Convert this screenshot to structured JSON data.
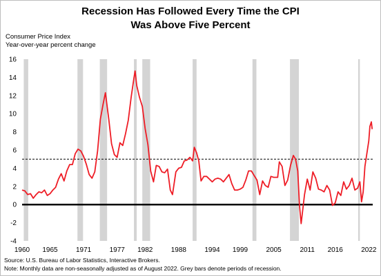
{
  "title_line1": "Recession Has Followed Every Time the CPI",
  "title_line2": "Was Above Five Percent",
  "ylabel_line1": "Consumer Price Index",
  "ylabel_line2": "Year-over-year percent change",
  "source": "Source: U.S. Bureau of Labor Statistics, Interactive Brokers.",
  "note": "Note: Monthly data are non-seasonally adjusted as of August 2022. Grey bars denote periods of recession.",
  "chart_data": {
    "type": "line",
    "xlim": [
      1960,
      2022.7
    ],
    "ylim": [
      -4,
      16
    ],
    "xticks": [
      "1960",
      "1965",
      "1971",
      "1977",
      "1982",
      "1988",
      "1994",
      "1999",
      "2005",
      "2011",
      "2016",
      "2022"
    ],
    "xtick_values": [
      1960,
      1965,
      1971,
      1977,
      1982,
      1988,
      1994,
      1999,
      2005,
      2011,
      2016,
      2022
    ],
    "yticks": [
      "-4",
      "-2",
      "0",
      "2",
      "4",
      "6",
      "8",
      "10",
      "12",
      "14",
      "16"
    ],
    "ytick_values": [
      -4,
      -2,
      0,
      2,
      4,
      6,
      8,
      10,
      12,
      14,
      16
    ],
    "threshold": 5,
    "zero_line": 0,
    "line_color": "#ee1c25",
    "recession_color": "#d4d4d4",
    "recessions": [
      [
        1960.3,
        1961.1
      ],
      [
        1969.9,
        1970.9
      ],
      [
        1973.9,
        1975.2
      ],
      [
        1980.0,
        1980.5
      ],
      [
        1981.5,
        1982.9
      ],
      [
        1990.5,
        1991.2
      ],
      [
        2001.2,
        2001.9
      ],
      [
        2007.9,
        2009.5
      ],
      [
        2020.1,
        2020.4
      ]
    ],
    "series": [
      {
        "x": [
          1960.0,
          1960.5,
          1961.0,
          1961.5,
          1962.0,
          1962.5,
          1963.0,
          1963.5,
          1964.0,
          1964.5,
          1965.0,
          1965.5,
          1966.0,
          1966.5,
          1967.0,
          1967.5,
          1968.0,
          1968.5,
          1969.0,
          1969.5,
          1970.0,
          1970.5,
          1971.0,
          1971.5,
          1972.0,
          1972.5,
          1973.0,
          1973.5,
          1974.0,
          1974.5,
          1974.9,
          1975.5,
          1976.0,
          1976.5,
          1977.0,
          1977.5,
          1978.0,
          1978.5,
          1979.0,
          1979.5,
          1980.0,
          1980.2,
          1980.5,
          1981.0,
          1981.5,
          1982.0,
          1982.5,
          1983.0,
          1983.5,
          1984.0,
          1984.5,
          1985.0,
          1985.5,
          1986.0,
          1986.5,
          1986.9,
          1987.5,
          1988.0,
          1988.5,
          1989.0,
          1989.5,
          1990.0,
          1990.5,
          1990.8,
          1991.2,
          1991.6,
          1992.0,
          1992.5,
          1993.0,
          1993.5,
          1994.0,
          1994.5,
          1995.0,
          1995.5,
          1996.0,
          1996.5,
          1997.0,
          1997.5,
          1998.0,
          1998.5,
          1999.0,
          1999.5,
          2000.0,
          2000.5,
          2001.0,
          2001.5,
          2002.0,
          2002.5,
          2003.0,
          2003.5,
          2004.0,
          2004.5,
          2005.0,
          2005.7,
          2006.0,
          2006.5,
          2007.0,
          2007.5,
          2008.0,
          2008.5,
          2008.9,
          2009.3,
          2009.6,
          2009.9,
          2010.5,
          2011.0,
          2011.5,
          2012.0,
          2012.5,
          2013.0,
          2013.5,
          2014.0,
          2014.5,
          2015.0,
          2015.5,
          2016.0,
          2016.5,
          2017.0,
          2017.5,
          2018.0,
          2018.5,
          2019.0,
          2019.5,
          2020.0,
          2020.4,
          2020.7,
          2021.0,
          2021.3,
          2021.6,
          2022.0,
          2022.2,
          2022.45,
          2022.6
        ],
        "y": [
          1.6,
          1.5,
          1.1,
          1.2,
          0.7,
          1.1,
          1.4,
          1.3,
          1.6,
          1.0,
          1.2,
          1.6,
          1.9,
          2.8,
          3.4,
          2.6,
          3.7,
          4.4,
          4.4,
          5.6,
          6.1,
          5.9,
          5.3,
          4.4,
          3.3,
          2.9,
          3.6,
          5.9,
          9.4,
          11.1,
          12.3,
          9.4,
          6.7,
          5.5,
          5.2,
          6.8,
          6.5,
          7.8,
          9.3,
          11.8,
          13.9,
          14.7,
          13.1,
          11.8,
          10.8,
          8.4,
          6.6,
          3.7,
          2.5,
          4.3,
          4.2,
          3.6,
          3.5,
          3.9,
          1.6,
          1.1,
          3.6,
          4.0,
          4.1,
          4.8,
          4.9,
          5.2,
          4.8,
          6.3,
          5.7,
          4.8,
          2.6,
          3.1,
          3.1,
          2.8,
          2.5,
          2.8,
          2.9,
          2.8,
          2.5,
          2.9,
          3.3,
          2.3,
          1.6,
          1.6,
          1.7,
          1.9,
          2.7,
          3.7,
          3.7,
          3.2,
          2.7,
          1.1,
          2.6,
          2.1,
          1.9,
          3.1,
          3.0,
          3.0,
          4.7,
          4.2,
          2.1,
          2.7,
          4.3,
          5.4,
          5.0,
          3.7,
          -0.1,
          -2.1,
          1.1,
          2.8,
          1.6,
          3.6,
          2.9,
          1.7,
          1.6,
          1.4,
          2.1,
          1.6,
          -0.1,
          0.2,
          1.4,
          1.0,
          2.5,
          1.7,
          2.1,
          2.9,
          1.6,
          1.8,
          2.5,
          0.3,
          1.4,
          4.2,
          5.4,
          7.0,
          8.6,
          9.1,
          8.3
        ],
        "name": ""
      }
    ]
  }
}
